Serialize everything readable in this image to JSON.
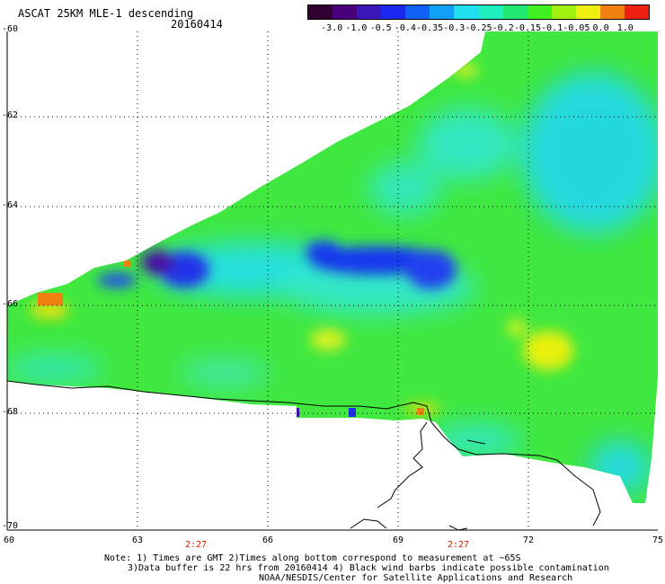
{
  "header": {
    "title": "ASCAT 25KM MLE-1 descending",
    "date": "20160414"
  },
  "colorbar": {
    "labels": [
      "-3.0",
      "-1.0",
      "-0.5",
      "-0.4",
      "-0.35",
      "-0.3",
      "-0.25",
      "-0.2",
      "-0.15",
      "-0.1",
      "-0.05",
      "0.0",
      "1.0"
    ],
    "colors": [
      "#300030",
      "#4a007a",
      "#3a18b8",
      "#1a28f0",
      "#1060f8",
      "#10a0f8",
      "#20e0f0",
      "#20f0c0",
      "#20e870",
      "#40f020",
      "#a0f010",
      "#f0f010",
      "#f08010",
      "#f02010"
    ]
  },
  "axes": {
    "lat_labels": [
      "-60",
      "-62",
      "-64",
      "-66",
      "-68",
      "-70"
    ],
    "lon_labels": [
      "60",
      "63",
      "66",
      "69",
      "72",
      "75"
    ],
    "time_labels": [
      "2:27",
      "2:27"
    ]
  },
  "notes": {
    "line1": "Note: 1) Times are GMT 2)Times along bottom correspond to measurement at ~65S",
    "line2": "3)Data buffer is 22 hrs from 20160414 4) Black wind barbs indicate possible contamination",
    "line3": "NOAA/NESDIS/Center for Satellite Applications and Research"
  },
  "colors": {
    "coastline": "#000000",
    "grid": "#000000"
  }
}
